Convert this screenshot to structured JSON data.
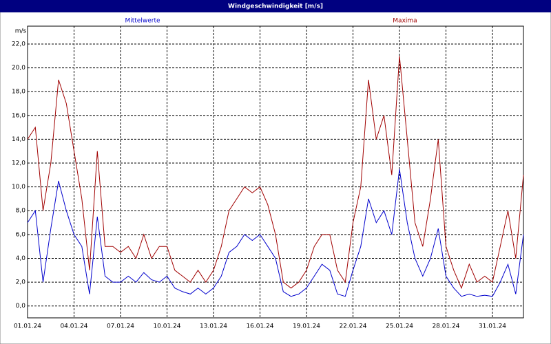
{
  "chart_data": {
    "type": "line",
    "title": "Windgeschwindigkeit [m/s]",
    "y_label": "m/s",
    "x": [
      0,
      0.5,
      1,
      1.5,
      2,
      2.5,
      3,
      3.5,
      4,
      4.5,
      5,
      5.5,
      6,
      6.5,
      7,
      7.5,
      8,
      8.5,
      9,
      9.5,
      10,
      10.5,
      11,
      11.5,
      12,
      12.5,
      13,
      13.5,
      14,
      14.5,
      15,
      15.5,
      16,
      16.5,
      17,
      17.5,
      18,
      18.5,
      19,
      19.5,
      20,
      20.5,
      21,
      21.5,
      22,
      22.5,
      23,
      23.5,
      24,
      24.5,
      25,
      25.5,
      26,
      26.5,
      27,
      27.5,
      28,
      28.5,
      29,
      29.5,
      30,
      30.5,
      31,
      31.5,
      32
    ],
    "series": [
      {
        "name": "Mittelwerte",
        "color": "#0000cc",
        "values": [
          7,
          8,
          2,
          6.5,
          10.5,
          8,
          6,
          5,
          1,
          7.5,
          2.5,
          2,
          2,
          2.5,
          2,
          2.8,
          2.2,
          2,
          2.5,
          1.5,
          1.2,
          1,
          1.5,
          1,
          1.5,
          2.5,
          4.5,
          5,
          6,
          5.5,
          6,
          5,
          4,
          1.2,
          0.8,
          1,
          1.5,
          2.5,
          3.5,
          3,
          1,
          0.8,
          3,
          5,
          9,
          7,
          8,
          6,
          11.5,
          7,
          4,
          2.5,
          4,
          6.5,
          2.5,
          1.5,
          0.8,
          1,
          0.8,
          0.9,
          0.8,
          2,
          3.5,
          1,
          6
        ]
      },
      {
        "name": "Maxima",
        "color": "#a00000",
        "values": [
          14,
          15,
          8,
          12,
          19,
          17,
          13,
          9,
          3,
          13,
          5,
          5,
          4.5,
          5,
          4,
          6,
          4,
          5,
          5,
          3,
          2.5,
          2,
          3,
          2,
          3,
          5,
          8,
          9,
          10,
          9.5,
          10,
          8.5,
          6,
          2,
          1.5,
          2,
          3,
          5,
          6,
          6,
          3,
          2,
          7,
          10,
          19,
          14,
          16,
          11,
          21,
          14,
          7,
          5,
          9,
          14,
          5,
          3,
          1.5,
          3.5,
          2,
          2.5,
          2,
          5,
          8,
          4,
          11
        ]
      }
    ],
    "xlim": [
      0,
      32
    ],
    "xticks": [
      {
        "value": 0,
        "label": "01.01.24"
      },
      {
        "value": 3,
        "label": "04.01.24"
      },
      {
        "value": 6,
        "label": "07.01.24"
      },
      {
        "value": 9,
        "label": "10.01.24"
      },
      {
        "value": 12,
        "label": "13.01.24"
      },
      {
        "value": 15,
        "label": "16.01.24"
      },
      {
        "value": 18,
        "label": "19.01.24"
      },
      {
        "value": 21,
        "label": "22.01.24"
      },
      {
        "value": 24,
        "label": "25.01.24"
      },
      {
        "value": 27,
        "label": "28.01.24"
      },
      {
        "value": 30,
        "label": "31.01.24"
      }
    ],
    "ylim": [
      -1,
      23.5
    ],
    "yticks": [
      {
        "value": 0,
        "label": "0,0"
      },
      {
        "value": 2,
        "label": "2,0"
      },
      {
        "value": 4,
        "label": "4,0"
      },
      {
        "value": 6,
        "label": "6,0"
      },
      {
        "value": 8,
        "label": "8,0"
      },
      {
        "value": 10,
        "label": "10,0"
      },
      {
        "value": 12,
        "label": "12,0"
      },
      {
        "value": 14,
        "label": "14,0"
      },
      {
        "value": 16,
        "label": "16,0"
      },
      {
        "value": 18,
        "label": "18,0"
      },
      {
        "value": 20,
        "label": "20,0"
      },
      {
        "value": 22,
        "label": "22,0"
      }
    ],
    "grid": true
  }
}
